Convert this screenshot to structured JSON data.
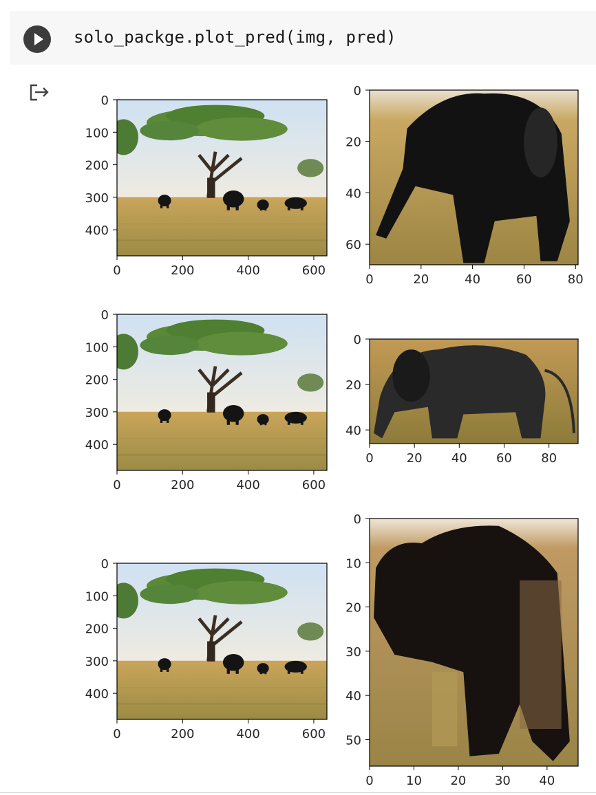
{
  "cell": {
    "code": "solo_packge.plot_pred(img, pred)"
  },
  "icons": {
    "run": "play-icon",
    "output": "output-redirect-icon"
  },
  "colors": {
    "input_bg": "#f7f7f7",
    "run_button": "#3c3c3c",
    "sky": "#d6e6f2",
    "grass": "#b39a4e",
    "tree": "#4e7a2e",
    "elephant": "#141414"
  },
  "chart_data": [
    {
      "type": "image",
      "panel": "full-1",
      "xticks": [
        "0",
        "200",
        "400",
        "600"
      ],
      "yticks": [
        "0",
        "100",
        "200",
        "300",
        "400"
      ],
      "xlim": [
        0,
        640
      ],
      "ylim": [
        480,
        0
      ]
    },
    {
      "type": "image",
      "panel": "crop-1",
      "xticks": [
        "0",
        "20",
        "40",
        "60",
        "80"
      ],
      "yticks": [
        "0",
        "20",
        "40",
        "60"
      ],
      "xlim": [
        0,
        81
      ],
      "ylim": [
        68,
        0
      ]
    },
    {
      "type": "image",
      "panel": "full-2",
      "xticks": [
        "0",
        "200",
        "400",
        "600"
      ],
      "yticks": [
        "0",
        "100",
        "200",
        "300",
        "400"
      ],
      "xlim": [
        0,
        640
      ],
      "ylim": [
        480,
        0
      ]
    },
    {
      "type": "image",
      "panel": "crop-2",
      "xticks": [
        "0",
        "20",
        "40",
        "60",
        "80"
      ],
      "yticks": [
        "0",
        "20",
        "40"
      ],
      "xlim": [
        0,
        93
      ],
      "ylim": [
        46,
        0
      ]
    },
    {
      "type": "image",
      "panel": "full-3",
      "xticks": [
        "0",
        "200",
        "400",
        "600"
      ],
      "yticks": [
        "0",
        "100",
        "200",
        "300",
        "400"
      ],
      "xlim": [
        0,
        640
      ],
      "ylim": [
        480,
        0
      ]
    },
    {
      "type": "image",
      "panel": "crop-3",
      "xticks": [
        "0",
        "10",
        "20",
        "30",
        "40"
      ],
      "yticks": [
        "0",
        "10",
        "20",
        "30",
        "40",
        "50"
      ],
      "xlim": [
        0,
        47
      ],
      "ylim": [
        56,
        0
      ]
    }
  ]
}
